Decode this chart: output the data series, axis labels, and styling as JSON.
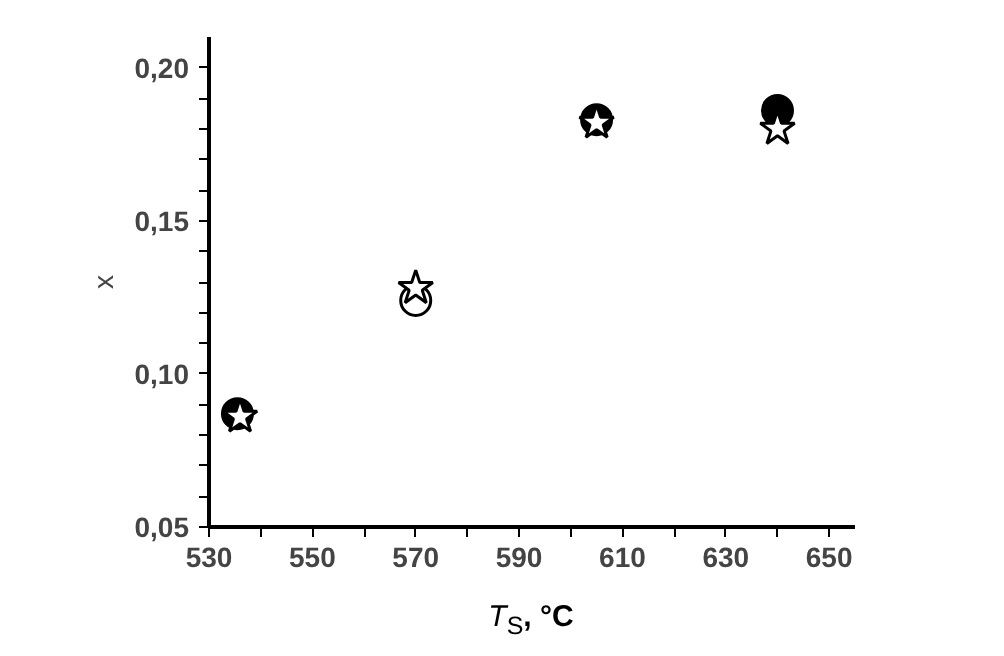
{
  "chart_data": {
    "type": "scatter",
    "xlabel": "T$_{S}$, °C",
    "ylabel": "x",
    "xlim": [
      530,
      655
    ],
    "ylim": [
      0.05,
      0.21
    ],
    "xticks": [
      530,
      {
        "value": 540,
        "label": null
      },
      550,
      {
        "value": 560,
        "label": null
      },
      570,
      {
        "value": 580,
        "label": null
      },
      590,
      {
        "value": 600,
        "label": null
      },
      610,
      {
        "value": 620,
        "label": null
      },
      630,
      {
        "value": 640,
        "label": null
      },
      650
    ],
    "yticks": [
      {
        "value": 0.05,
        "label": "0,05"
      },
      {
        "value": 0.06,
        "label": null
      },
      {
        "value": 0.07,
        "label": null
      },
      {
        "value": 0.08,
        "label": null
      },
      {
        "value": 0.09,
        "label": null
      },
      {
        "value": 0.1,
        "label": "0,10"
      },
      {
        "value": 0.11,
        "label": null
      },
      {
        "value": 0.12,
        "label": null
      },
      {
        "value": 0.13,
        "label": null
      },
      {
        "value": 0.14,
        "label": null
      },
      {
        "value": 0.15,
        "label": "0,15"
      },
      {
        "value": 0.16,
        "label": null
      },
      {
        "value": 0.17,
        "label": null
      },
      {
        "value": 0.18,
        "label": null
      },
      {
        "value": 0.19,
        "label": null
      },
      {
        "value": 0.2,
        "label": "0,20"
      }
    ],
    "grid": false,
    "series": [
      {
        "marker": "circle",
        "color": "#000000",
        "colors": [
          "#000000",
          "#ffffff",
          "#000000",
          "#000000"
        ],
        "x": [
          535.5,
          570,
          605,
          640
        ],
        "values": [
          0.087,
          0.124,
          0.183,
          0.186
        ]
      },
      {
        "marker": "star",
        "color": "#000000",
        "colors": [
          "#ffffff",
          "#ffffff",
          "#ffffff",
          "#ffffff"
        ],
        "x": [
          536,
          570,
          605,
          640
        ],
        "values": [
          0.086,
          0.128,
          0.182,
          0.18
        ]
      }
    ]
  }
}
